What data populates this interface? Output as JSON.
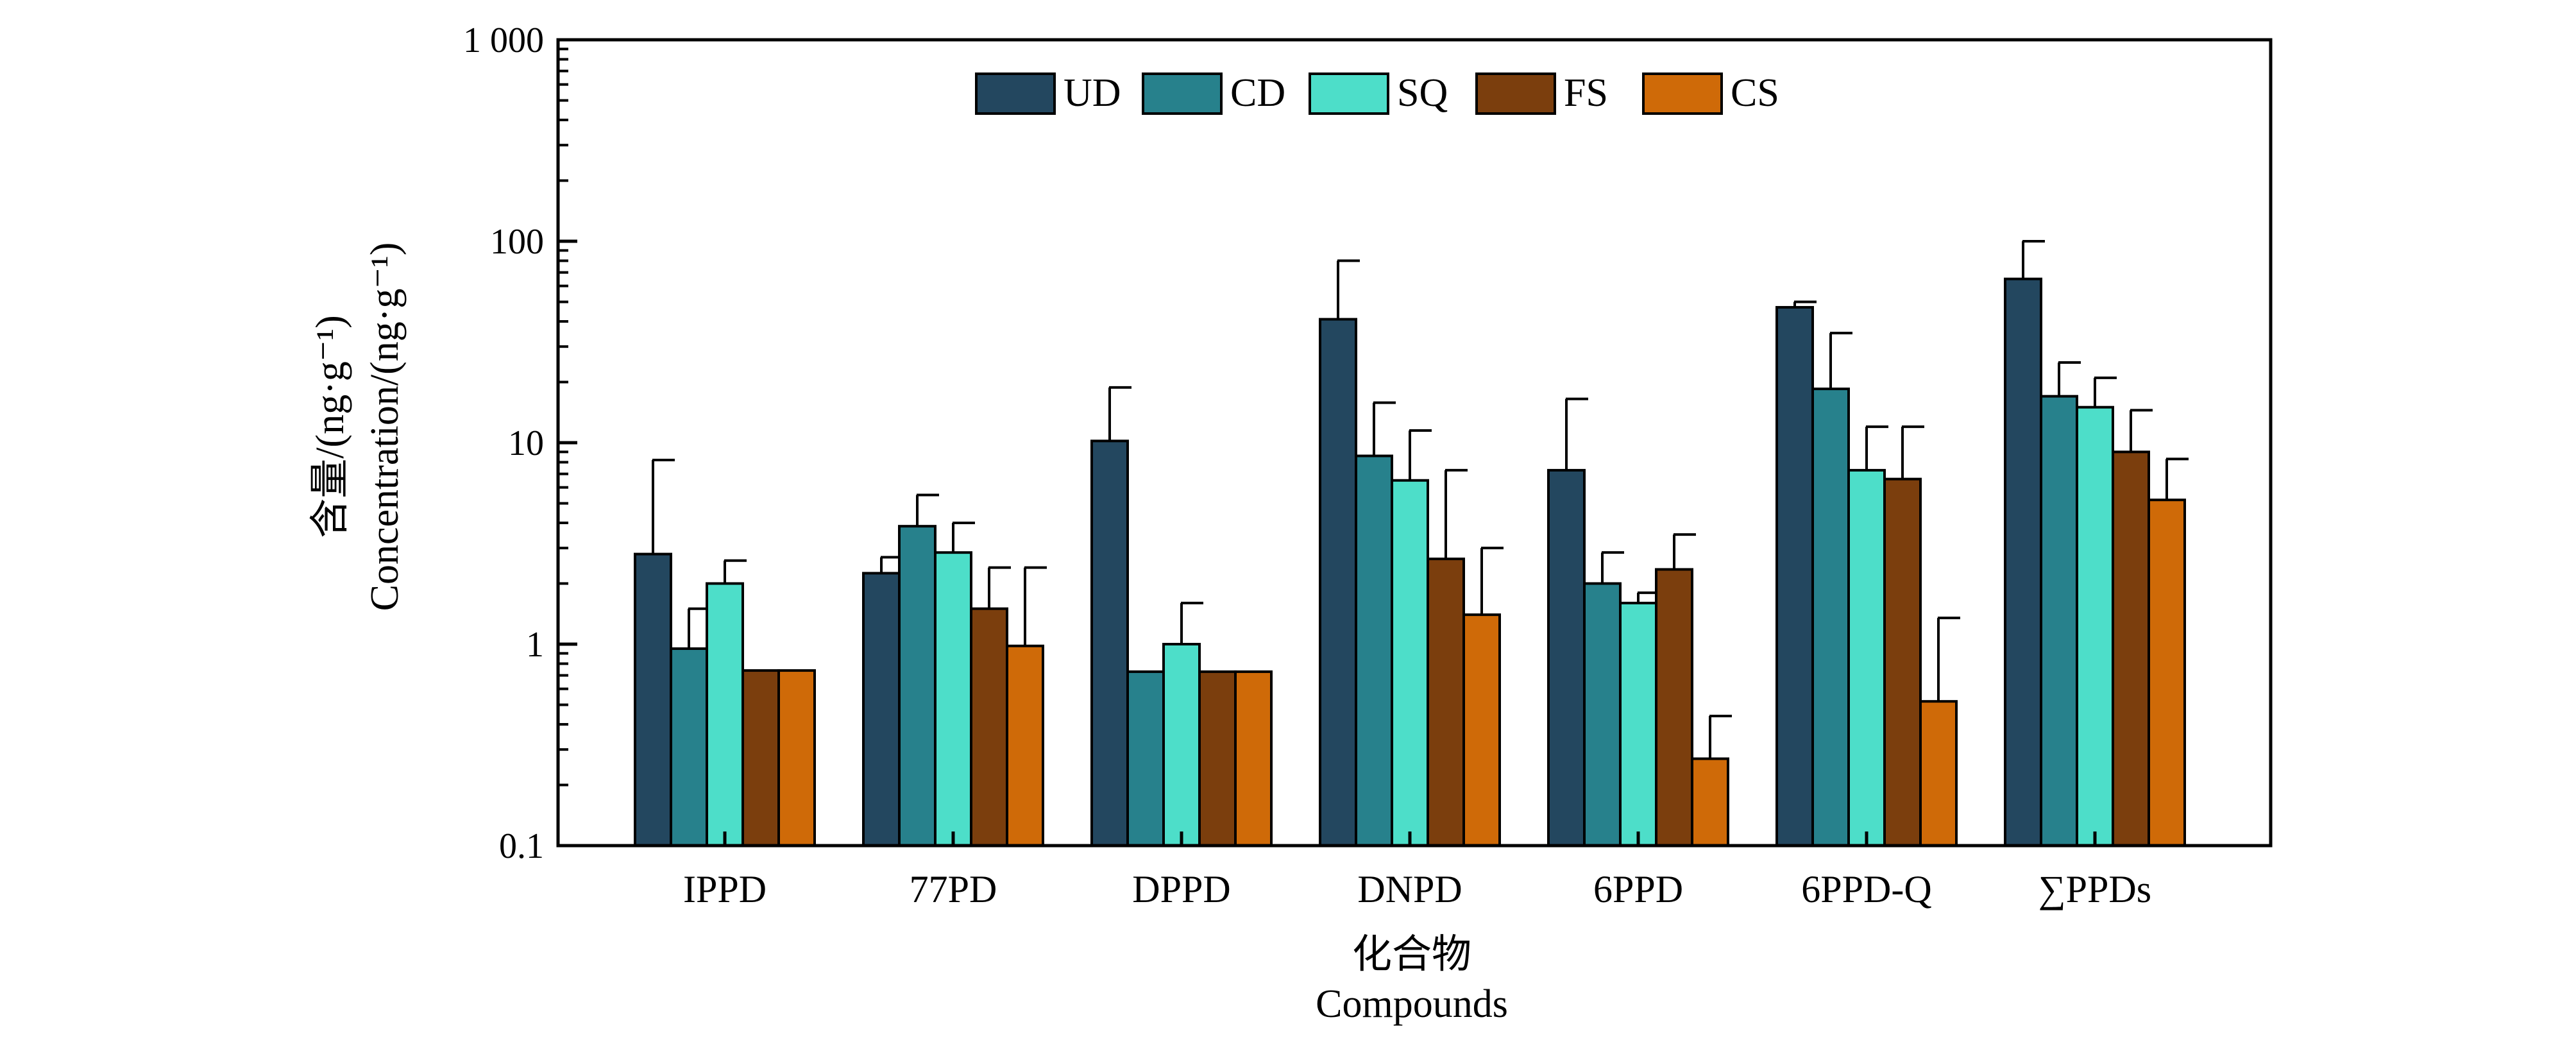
{
  "chart_data": {
    "type": "bar",
    "title": "",
    "xlabel_zh": "化合物",
    "xlabel_en": "Compounds",
    "ylabel_zh": "含量/(ng·g⁻¹)",
    "ylabel_en": "Concentration/(ng·g⁻¹)",
    "yscale": "log",
    "ylim": [
      0.1,
      1000
    ],
    "ytick_values": [
      0.1,
      1,
      10,
      100,
      1000
    ],
    "ytick_labels": [
      "0.1",
      "1",
      "10",
      "100",
      "1 000"
    ],
    "legend_position": "top-center",
    "categories": [
      "IPPD",
      "77PD",
      "DPPD",
      "DNPD",
      "6PPD",
      "6PPD-Q",
      "∑PPDs"
    ],
    "series": [
      {
        "name": "UD",
        "color": "#23475f",
        "values": [
          2.8,
          2.25,
          10.2,
          41,
          7.3,
          47,
          65
        ],
        "error_upper": [
          8.2,
          2.7,
          18.8,
          80,
          16.5,
          50,
          100
        ]
      },
      {
        "name": "CD",
        "color": "#27818c",
        "values": [
          0.95,
          3.85,
          0.73,
          8.6,
          2.0,
          18.5,
          17
        ],
        "error_upper": [
          1.5,
          5.5,
          null,
          15.8,
          2.85,
          35,
          25
        ]
      },
      {
        "name": "SQ",
        "color": "#4ddec9",
        "values": [
          2.0,
          2.85,
          1.0,
          6.5,
          1.6,
          7.3,
          15
        ],
        "error_upper": [
          2.6,
          4.0,
          1.6,
          11.5,
          1.8,
          12,
          21
        ]
      },
      {
        "name": "FS",
        "color": "#7b3e0d",
        "values": [
          0.74,
          1.5,
          0.73,
          2.65,
          2.35,
          6.6,
          9
        ],
        "error_upper": [
          null,
          2.4,
          null,
          7.3,
          3.5,
          12,
          14.5
        ]
      },
      {
        "name": "CS",
        "color": "#cf6a08",
        "values": [
          0.74,
          0.98,
          0.73,
          1.4,
          0.27,
          0.52,
          5.2
        ],
        "error_upper": [
          null,
          2.4,
          null,
          3.0,
          0.44,
          1.35,
          8.3
        ]
      }
    ]
  }
}
